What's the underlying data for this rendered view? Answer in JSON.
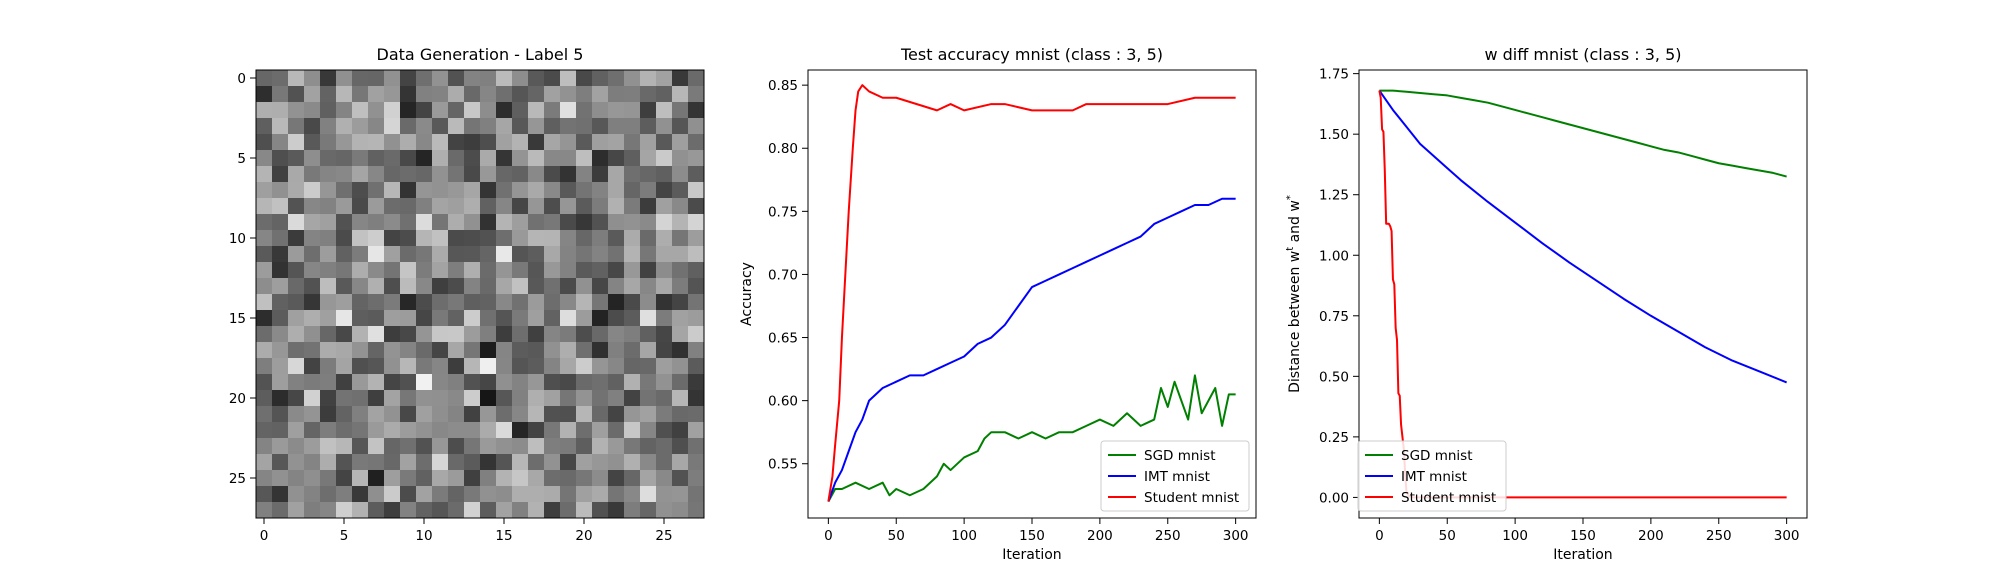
{
  "chart_data": [
    {
      "type": "heatmap",
      "title": "Data Generation - Label 5",
      "xticks": [
        "0",
        "5",
        "10",
        "15",
        "20",
        "25"
      ],
      "yticks": [
        "0",
        "5",
        "10",
        "15",
        "20",
        "25"
      ],
      "xlim": [
        -0.5,
        27.5
      ],
      "ylim": [
        27.5,
        -0.5
      ],
      "rows": 28,
      "cols": 28,
      "colormap": "gray",
      "values": null
    },
    {
      "type": "line",
      "title": "Test accuracy mnist (class : 3, 5)",
      "xlabel": "Iteration",
      "ylabel": "Accuracy",
      "xlim": [
        -15,
        315
      ],
      "ylim": [
        0.507,
        0.862
      ],
      "xticks": [
        "0",
        "50",
        "100",
        "150",
        "200",
        "250",
        "300"
      ],
      "yticks": [
        "0.55",
        "0.60",
        "0.65",
        "0.70",
        "0.75",
        "0.80",
        "0.85"
      ],
      "legend_position": "lower-right",
      "series": [
        {
          "name": "SGD mnist",
          "color": "#008000",
          "x": [
            0,
            5,
            10,
            20,
            30,
            40,
            45,
            50,
            60,
            70,
            80,
            85,
            90,
            100,
            110,
            115,
            120,
            130,
            140,
            150,
            160,
            170,
            180,
            190,
            200,
            210,
            220,
            230,
            240,
            245,
            250,
            255,
            260,
            265,
            270,
            275,
            280,
            285,
            290,
            295,
            300
          ],
          "y": [
            0.52,
            0.53,
            0.53,
            0.535,
            0.53,
            0.535,
            0.525,
            0.53,
            0.525,
            0.53,
            0.54,
            0.55,
            0.545,
            0.555,
            0.56,
            0.57,
            0.575,
            0.575,
            0.57,
            0.575,
            0.57,
            0.575,
            0.575,
            0.58,
            0.585,
            0.58,
            0.59,
            0.58,
            0.585,
            0.61,
            0.595,
            0.615,
            0.6,
            0.585,
            0.62,
            0.59,
            0.6,
            0.61,
            0.58,
            0.605,
            0.605
          ]
        },
        {
          "name": "IMT mnist",
          "color": "#0000ff",
          "x": [
            0,
            5,
            10,
            15,
            20,
            25,
            30,
            40,
            50,
            60,
            70,
            80,
            90,
            100,
            110,
            120,
            130,
            140,
            150,
            160,
            170,
            180,
            190,
            200,
            210,
            220,
            230,
            240,
            250,
            260,
            270,
            280,
            290,
            300
          ],
          "y": [
            0.52,
            0.535,
            0.545,
            0.56,
            0.575,
            0.585,
            0.6,
            0.61,
            0.615,
            0.62,
            0.62,
            0.625,
            0.63,
            0.635,
            0.645,
            0.65,
            0.66,
            0.675,
            0.69,
            0.695,
            0.7,
            0.705,
            0.71,
            0.715,
            0.72,
            0.725,
            0.73,
            0.74,
            0.745,
            0.75,
            0.755,
            0.755,
            0.76,
            0.76
          ]
        },
        {
          "name": "Student mnist",
          "color": "#ff0000",
          "x": [
            0,
            3,
            5,
            8,
            10,
            12,
            15,
            18,
            20,
            22,
            25,
            30,
            40,
            50,
            80,
            90,
            100,
            120,
            130,
            150,
            180,
            190,
            200,
            250,
            270,
            300
          ],
          "y": [
            0.52,
            0.54,
            0.565,
            0.6,
            0.65,
            0.69,
            0.75,
            0.8,
            0.83,
            0.845,
            0.85,
            0.845,
            0.84,
            0.84,
            0.83,
            0.835,
            0.83,
            0.835,
            0.835,
            0.83,
            0.83,
            0.835,
            0.835,
            0.835,
            0.84,
            0.84
          ]
        }
      ]
    },
    {
      "type": "line",
      "title": "w diff mnist (class : 3, 5)",
      "xlabel": "Iteration",
      "ylabel": "Distance between w",
      "ylabel_sup1": "t",
      "ylabel_mid": " and w",
      "ylabel_sup2": "*",
      "xlim": [
        -15,
        315
      ],
      "ylim": [
        -0.085,
        1.765
      ],
      "xticks": [
        "0",
        "50",
        "100",
        "150",
        "200",
        "250",
        "300"
      ],
      "yticks": [
        "0.00",
        "0.25",
        "0.50",
        "0.75",
        "1.00",
        "1.25",
        "1.50",
        "1.75"
      ],
      "legend_position": "lower-left",
      "series": [
        {
          "name": "SGD mnist",
          "color": "#008000",
          "x": [
            0,
            10,
            20,
            30,
            40,
            50,
            60,
            70,
            80,
            90,
            100,
            110,
            120,
            130,
            140,
            150,
            160,
            170,
            180,
            190,
            200,
            210,
            220,
            230,
            240,
            250,
            260,
            270,
            280,
            290,
            300
          ],
          "y": [
            1.68,
            1.68,
            1.675,
            1.67,
            1.665,
            1.66,
            1.65,
            1.64,
            1.63,
            1.615,
            1.6,
            1.585,
            1.57,
            1.555,
            1.54,
            1.525,
            1.51,
            1.495,
            1.48,
            1.465,
            1.45,
            1.435,
            1.425,
            1.41,
            1.395,
            1.38,
            1.37,
            1.36,
            1.35,
            1.34,
            1.325
          ]
        },
        {
          "name": "IMT mnist",
          "color": "#0000ff",
          "x": [
            0,
            10,
            20,
            30,
            40,
            50,
            60,
            80,
            100,
            120,
            140,
            160,
            180,
            200,
            220,
            240,
            260,
            280,
            300
          ],
          "y": [
            1.68,
            1.6,
            1.53,
            1.46,
            1.41,
            1.36,
            1.31,
            1.22,
            1.135,
            1.05,
            0.97,
            0.895,
            0.82,
            0.75,
            0.685,
            0.62,
            0.565,
            0.52,
            0.475
          ]
        },
        {
          "name": "Student mnist",
          "color": "#ff0000",
          "x": [
            0,
            1,
            2,
            3,
            4,
            5,
            6,
            7,
            8,
            9,
            10,
            11,
            12,
            13,
            14,
            15,
            16,
            17,
            18,
            19,
            20,
            22,
            25,
            30,
            50,
            100,
            150,
            200,
            250,
            300
          ],
          "y": [
            1.68,
            1.65,
            1.52,
            1.51,
            1.35,
            1.13,
            1.13,
            1.13,
            1.12,
            1.1,
            0.9,
            0.88,
            0.7,
            0.65,
            0.43,
            0.42,
            0.3,
            0.25,
            0.2,
            0.1,
            0.02,
            0.005,
            0.0,
            0.0,
            0.0,
            0.0,
            0.0,
            0.0,
            0.0,
            0.0
          ]
        }
      ]
    }
  ]
}
